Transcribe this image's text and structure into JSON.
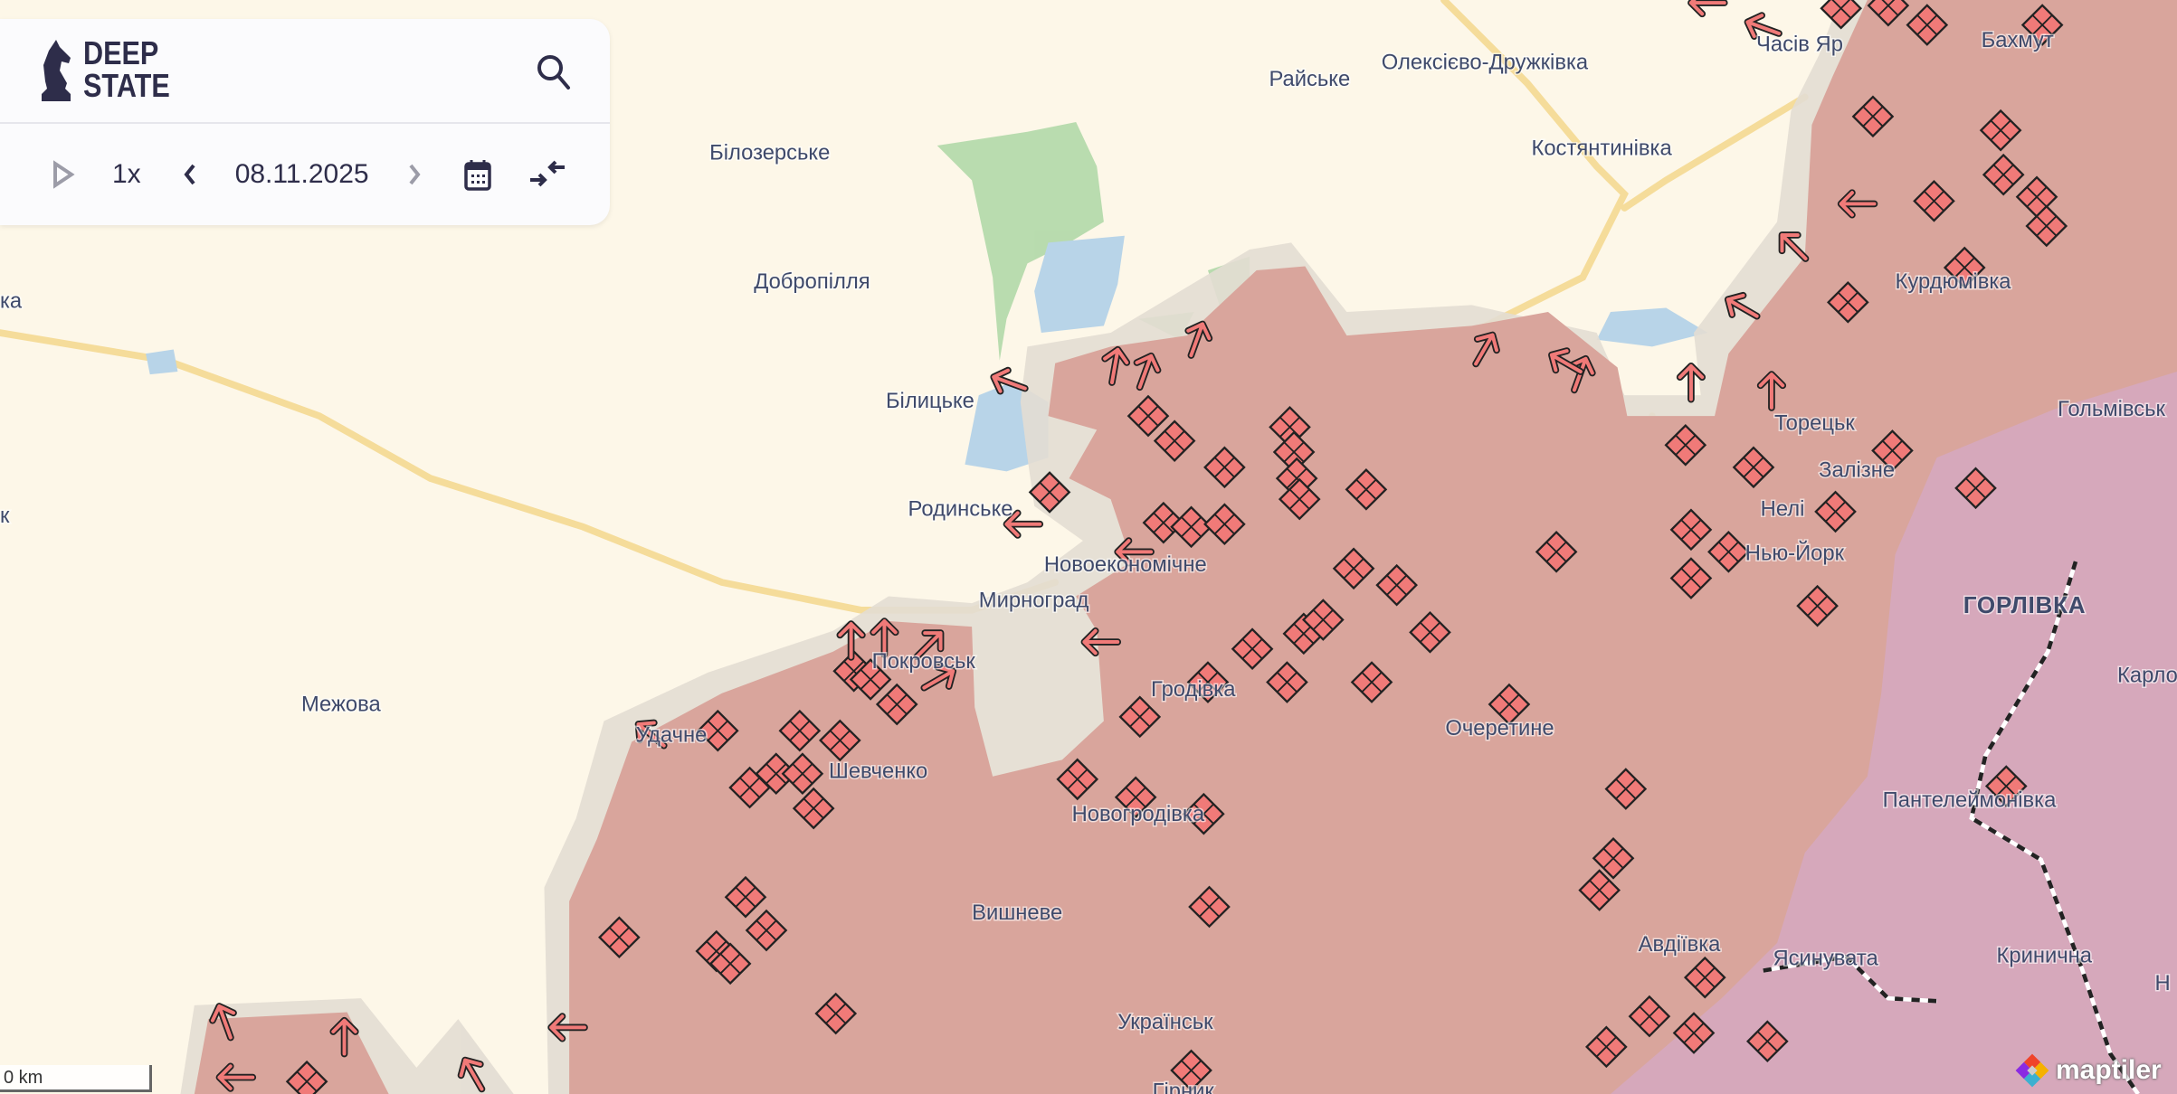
{
  "app": {
    "logo_line1": "DEEP",
    "logo_line2": "STATE"
  },
  "controls": {
    "speed": "1x",
    "date": "08.11.2025",
    "icons": [
      "play-icon",
      "chevron-left-icon",
      "chevron-right-icon",
      "calendar-icon",
      "collapse-arrows-icon",
      "search-icon"
    ]
  },
  "map": {
    "scale_label": "0 km",
    "attribution": "maptiler",
    "colors": {
      "background": "#fdf7e8",
      "occupied": "#d9a59c",
      "contested": "#e3ddd3",
      "crimea_like": "#d6a8bb",
      "forest": "#a8d5a0",
      "water": "#b8d4e8",
      "marker": "#f07a78",
      "road": "#f5dc9a"
    },
    "places": [
      "Часів Яр",
      "Бахмут",
      "Райське",
      "Олексієво-Дружківка",
      "Білозерське",
      "Костянтинівка",
      "Добропілля",
      "Курдюмівка",
      "Білицьке",
      "Торецьк",
      "Гольмівськ",
      "Залізне",
      "Родинське",
      "Нелі",
      "Нью-Йорк",
      "Новоекономічне",
      "Мирноград",
      "ГОРЛІВКА",
      "Покровськ",
      "Карло",
      "Гродівка",
      "Межова",
      "Удачне",
      "Очеретине",
      "Шевченко",
      "Пантелеймонівка",
      "Новогродівка",
      "Вишневе",
      "Авдіївка",
      "Ясинувата",
      "Кринична",
      "Українськ",
      "Гірник",
      "ка",
      "к",
      "Н"
    ]
  }
}
